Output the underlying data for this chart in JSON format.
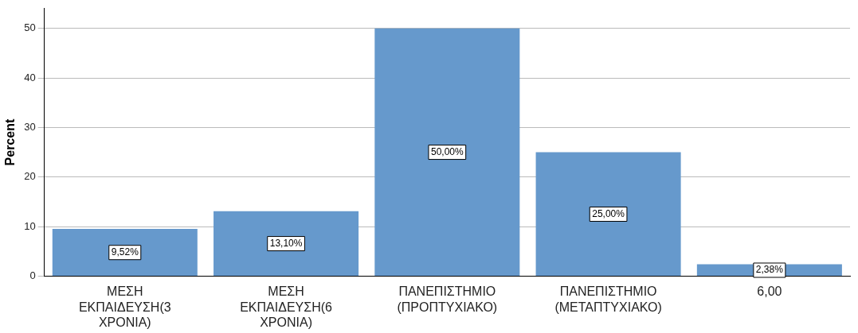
{
  "chart_data": {
    "type": "bar",
    "ylabel": "Percent",
    "categories": [
      "ΜΕΣΗ ΕΚΠΑΙΔΕΥΣΗ(3 ΧΡΟΝΙΑ)",
      "ΜΕΣΗ ΕΚΠΑΙΔΕΥΣΗ(6 ΧΡΟΝΙΑ)",
      "ΠΑΝΕΠΙΣΤΗΜΙΟ (ΠΡΟΠΤΥΧΙΑΚΟ)",
      "ΠΑΝΕΠΙΣΤΗΜΙΟ (ΜΕΤΑΠΤΥΧΙΑΚΟ)",
      "6,00"
    ],
    "values": [
      9.52,
      13.1,
      50,
      25,
      2.38
    ],
    "value_labels": [
      "9,52%",
      "13,10%",
      "50,00%",
      "25,00%",
      "2,38%"
    ],
    "color": "#6699cc",
    "ylim": [
      0,
      54
    ],
    "yticks": [
      0,
      10,
      20,
      30,
      40,
      50
    ],
    "grid": "y"
  }
}
